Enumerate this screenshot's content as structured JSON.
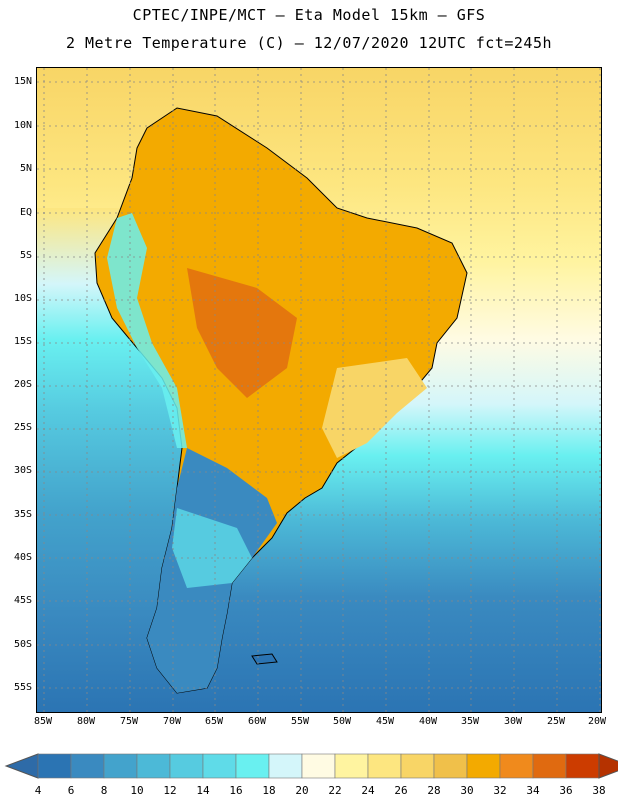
{
  "header": {
    "line1": "CPTEC/INPE/MCT –  Eta Model 15km – GFS",
    "line2": "2 Metre Temperature (C) – 12/07/2020 12UTC fct=245h"
  },
  "map": {
    "lat_labels": [
      "15N",
      "10N",
      "5N",
      "EQ",
      "5S",
      "10S",
      "15S",
      "20S",
      "25S",
      "30S",
      "35S",
      "40S",
      "45S",
      "50S",
      "55S"
    ],
    "lon_labels": [
      "85W",
      "80W",
      "75W",
      "70W",
      "65W",
      "60W",
      "55W",
      "50W",
      "45W",
      "40W",
      "35W",
      "30W",
      "25W",
      "20W"
    ],
    "region": "South America"
  },
  "colorbar": {
    "labels": [
      "4",
      "6",
      "8",
      "10",
      "12",
      "14",
      "16",
      "18",
      "20",
      "22",
      "24",
      "26",
      "28",
      "30",
      "32",
      "34",
      "36",
      "38"
    ],
    "colors": [
      "#2b74b3",
      "#3a8ac0",
      "#43a3cc",
      "#4cb9d7",
      "#56cbe0",
      "#5fdbe8",
      "#69f0f0",
      "#d4f6fa",
      "#fffbe3",
      "#fff4a0",
      "#fde680",
      "#f8d566",
      "#f0c04a",
      "#f3aa00",
      "#f08a1c",
      "#e06a10",
      "#cc3c00"
    ],
    "left_arrow_color": "#2e6ba8",
    "right_arrow_color": "#b53200"
  }
}
